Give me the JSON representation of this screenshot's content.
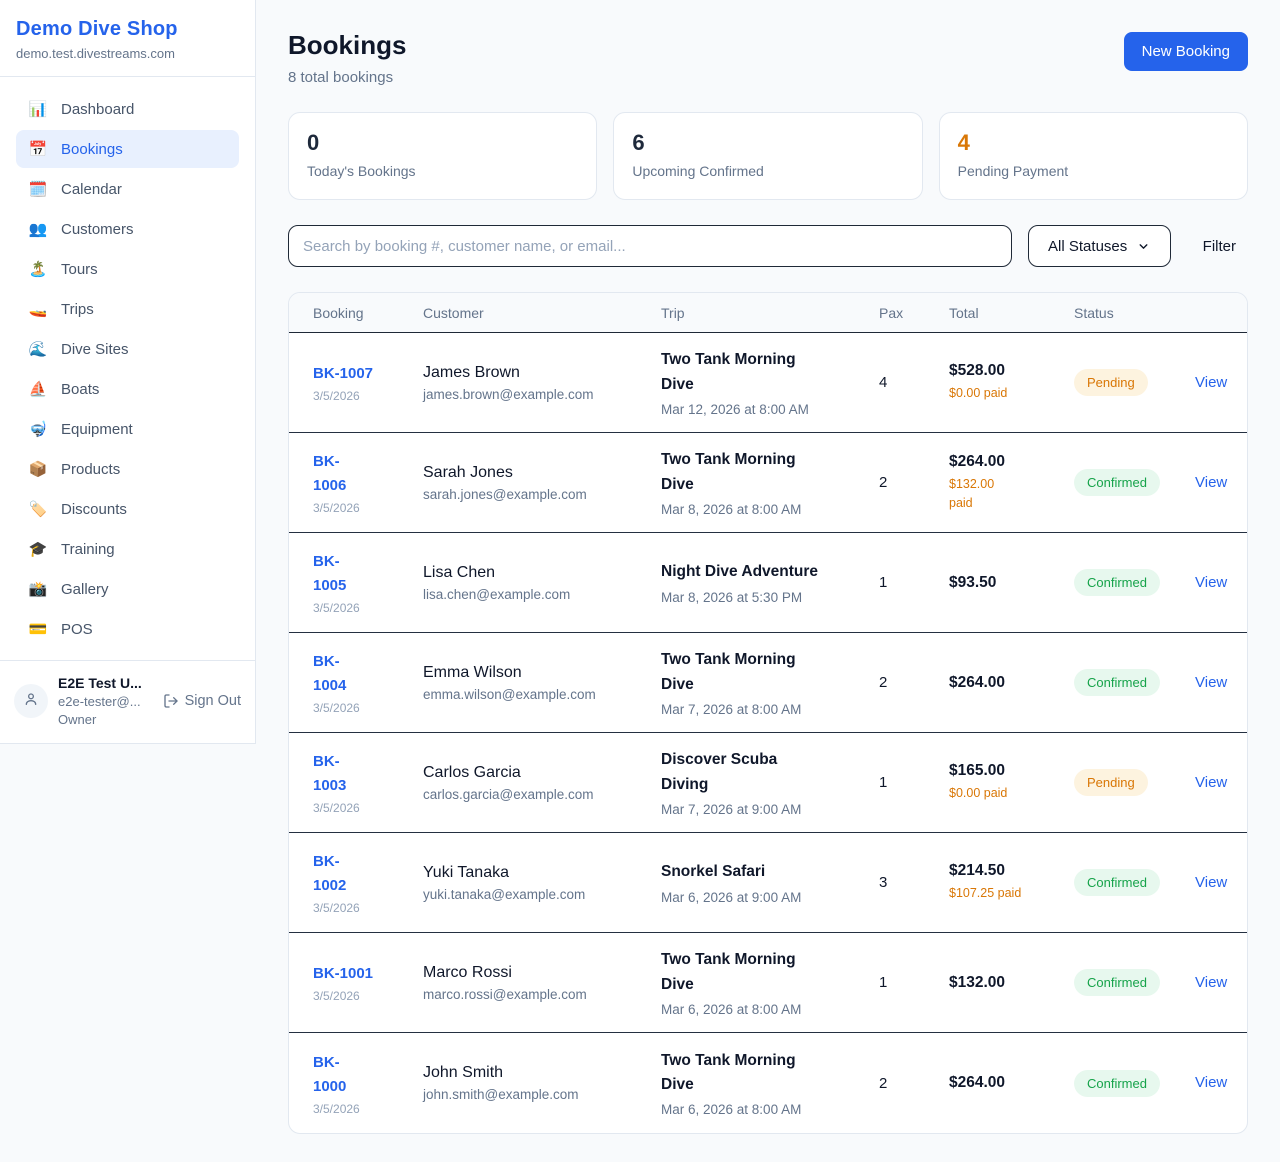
{
  "sidebar": {
    "brand": {
      "name": "Demo Dive Shop",
      "domain": "demo.test.divestreams.com"
    },
    "items": [
      {
        "label": "Dashboard",
        "icon": "📊",
        "active": false
      },
      {
        "label": "Bookings",
        "icon": "📅",
        "active": true
      },
      {
        "label": "Calendar",
        "icon": "🗓️",
        "active": false
      },
      {
        "label": "Customers",
        "icon": "👥",
        "active": false
      },
      {
        "label": "Tours",
        "icon": "🏝️",
        "active": false
      },
      {
        "label": "Trips",
        "icon": "🚤",
        "active": false
      },
      {
        "label": "Dive Sites",
        "icon": "🌊",
        "active": false
      },
      {
        "label": "Boats",
        "icon": "⛵",
        "active": false
      },
      {
        "label": "Equipment",
        "icon": "🤿",
        "active": false
      },
      {
        "label": "Products",
        "icon": "📦",
        "active": false
      },
      {
        "label": "Discounts",
        "icon": "🏷️",
        "active": false
      },
      {
        "label": "Training",
        "icon": "🎓",
        "active": false
      },
      {
        "label": "Gallery",
        "icon": "📸",
        "active": false
      },
      {
        "label": "POS",
        "icon": "💳",
        "active": false
      }
    ],
    "user": {
      "name": "E2E Test U...",
      "email": "e2e-tester@...",
      "role": "Owner",
      "signout_label": "Sign Out"
    }
  },
  "header": {
    "title": "Bookings",
    "subtitle": "8 total bookings",
    "new_booking_label": "New Booking"
  },
  "stats": [
    {
      "value": "0",
      "label": "Today's Bookings",
      "color": "#1e293b"
    },
    {
      "value": "6",
      "label": "Upcoming Confirmed",
      "color": "#1e293b"
    },
    {
      "value": "4",
      "label": "Pending Payment",
      "color": "#d97706"
    }
  ],
  "controls": {
    "search_placeholder": "Search by booking #, customer name, or email...",
    "status_filter_selected": "All Statuses",
    "filter_label": "Filter"
  },
  "table": {
    "headers": [
      "Booking",
      "Customer",
      "Trip",
      "Pax",
      "Total",
      "Status"
    ],
    "view_label": "View"
  },
  "rows": [
    {
      "id": "BK-1007",
      "id_wrap": false,
      "date": "3/5/2026",
      "customer_name": "James Brown",
      "customer_email": "james.brown@example.com",
      "trip": "Two Tank Morning Dive",
      "trip_wrap": true,
      "trip_when": "Mar 12, 2026 at 8:00 AM",
      "pax": "4",
      "total": "$528.00",
      "paid": "$0.00 paid",
      "paid_wrap": false,
      "status": "Pending"
    },
    {
      "id": "BK-1006",
      "id_wrap": true,
      "date": "3/5/2026",
      "customer_name": "Sarah Jones",
      "customer_email": "sarah.jones@example.com",
      "trip": "Two Tank Morning Dive",
      "trip_wrap": true,
      "trip_when": "Mar 8, 2026 at 8:00 AM",
      "pax": "2",
      "total": "$264.00",
      "paid": "$132.00 paid",
      "paid_wrap": true,
      "status": "Confirmed"
    },
    {
      "id": "BK-1005",
      "id_wrap": true,
      "date": "3/5/2026",
      "customer_name": "Lisa Chen",
      "customer_email": "lisa.chen@example.com",
      "trip": "Night Dive Adventure",
      "trip_wrap": false,
      "trip_when": "Mar 8, 2026 at 5:30 PM",
      "pax": "1",
      "total": "$93.50",
      "paid": null,
      "paid_wrap": false,
      "status": "Confirmed"
    },
    {
      "id": "BK-1004",
      "id_wrap": true,
      "date": "3/5/2026",
      "customer_name": "Emma Wilson",
      "customer_email": "emma.wilson@example.com",
      "trip": "Two Tank Morning Dive",
      "trip_wrap": true,
      "trip_when": "Mar 7, 2026 at 8:00 AM",
      "pax": "2",
      "total": "$264.00",
      "paid": null,
      "paid_wrap": false,
      "status": "Confirmed"
    },
    {
      "id": "BK-1003",
      "id_wrap": true,
      "date": "3/5/2026",
      "customer_name": "Carlos Garcia",
      "customer_email": "carlos.garcia@example.com",
      "trip": "Discover Scuba Diving",
      "trip_wrap": true,
      "trip_when": "Mar 7, 2026 at 9:00 AM",
      "pax": "1",
      "total": "$165.00",
      "paid": "$0.00 paid",
      "paid_wrap": false,
      "status": "Pending"
    },
    {
      "id": "BK-1002",
      "id_wrap": true,
      "date": "3/5/2026",
      "customer_name": "Yuki Tanaka",
      "customer_email": "yuki.tanaka@example.com",
      "trip": "Snorkel Safari",
      "trip_wrap": false,
      "trip_when": "Mar 6, 2026 at 9:00 AM",
      "pax": "3",
      "total": "$214.50",
      "paid": "$107.25 paid",
      "paid_wrap": false,
      "status": "Confirmed"
    },
    {
      "id": "BK-1001",
      "id_wrap": false,
      "date": "3/5/2026",
      "customer_name": "Marco Rossi",
      "customer_email": "marco.rossi@example.com",
      "trip": "Two Tank Morning Dive",
      "trip_wrap": true,
      "trip_when": "Mar 6, 2026 at 8:00 AM",
      "pax": "1",
      "total": "$132.00",
      "paid": null,
      "paid_wrap": false,
      "status": "Confirmed"
    },
    {
      "id": "BK-1000",
      "id_wrap": true,
      "date": "3/5/2026",
      "customer_name": "John Smith",
      "customer_email": "john.smith@example.com",
      "trip": "Two Tank Morning Dive",
      "trip_wrap": true,
      "trip_when": "Mar 6, 2026 at 8:00 AM",
      "pax": "2",
      "total": "$264.00",
      "paid": null,
      "paid_wrap": false,
      "status": "Confirmed"
    }
  ],
  "badge_colors": {
    "Pending": {
      "fg": "#d97706",
      "bg": "#fdf3df"
    },
    "Confirmed": {
      "fg": "#16a34a",
      "bg": "#e7f8ee"
    }
  }
}
